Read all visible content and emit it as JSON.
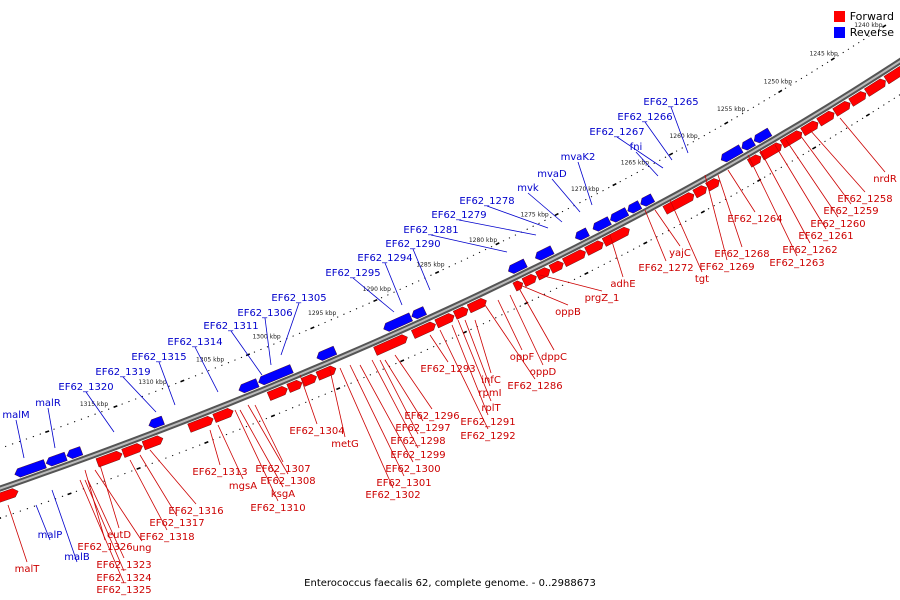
{
  "colors": {
    "forward": "#ff0000",
    "reverse": "#0000ff",
    "backbone": "#888888",
    "label_forward": "#cc0000",
    "label_reverse": "#0000cc"
  },
  "legend": {
    "forward_label": "Forward",
    "reverse_label": "Reverse"
  },
  "caption": "Enterococcus faecalis 62, complete genome. - 0..2988673",
  "kbp_labels": [
    "1240 kbp",
    "1245 kbp",
    "1250 kbp",
    "1255 kbp",
    "1260 kbp",
    "1265 kbp",
    "1270 kbp",
    "1275 kbp",
    "1280 kbp",
    "1285 kbp",
    "1290 kbp",
    "1295 kbp",
    "1300 kbp",
    "1305 kbp",
    "1310 kbp",
    "1315 kbp"
  ],
  "reverse_genes": [
    "EF62_1265",
    "EF62_1266",
    "EF62_1267",
    "fni",
    "mvaK2",
    "mvaD",
    "mvk",
    "EF62_1278",
    "EF62_1279",
    "EF62_1281",
    "EF62_1290",
    "EF62_1294",
    "EF62_1295",
    "EF62_1305",
    "EF62_1306",
    "EF62_1311",
    "EF62_1314",
    "EF62_1315",
    "EF62_1319",
    "EF62_1320",
    "malR",
    "malM",
    "malP",
    "malB"
  ],
  "forward_genes": [
    "nrdR",
    "EF62_1258",
    "EF62_1259",
    "EF62_1260",
    "EF62_1261",
    "EF62_1262",
    "EF62_1263",
    "EF62_1264",
    "EF62_1268",
    "EF62_1269",
    "tgt",
    "yajC",
    "EF62_1272",
    "adhE",
    "prgZ_1",
    "oppB",
    "dppC",
    "oppD",
    "oppF",
    "EF62_1286",
    "infC",
    "rpmI",
    "rplT",
    "EF62_1291",
    "EF62_1292",
    "EF62_1293",
    "EF62_1296",
    "EF62_1297",
    "EF62_1298",
    "EF62_1299",
    "EF62_1300",
    "EF62_1301",
    "EF62_1302",
    "metG",
    "EF62_1304",
    "EF62_1307",
    "EF62_1308",
    "ksgA",
    "EF62_1310",
    "mgsA",
    "EF62_1313",
    "EF62_1316",
    "EF62_1317",
    "EF62_1318",
    "eutD",
    "ung",
    "EF62_1326",
    "EF62_1323",
    "EF62_1324",
    "EF62_1325",
    "malT"
  ]
}
